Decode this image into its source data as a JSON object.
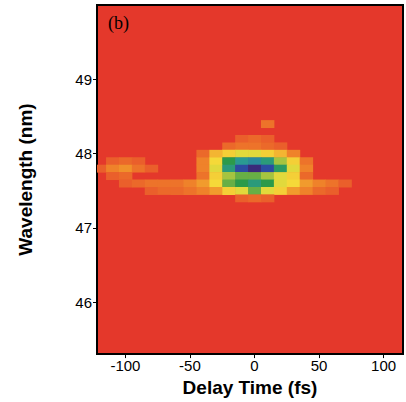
{
  "chart_data": {
    "type": "heatmap",
    "title": "(b)",
    "x_label": "Delay Time (fs)",
    "y_label": "Wavelength (nm)",
    "xlim": [
      -122,
      115
    ],
    "xticks": [
      -100,
      -50,
      0,
      50,
      100
    ],
    "ylim": [
      45.3,
      50.0
    ],
    "yticks": [
      46,
      47,
      48,
      49
    ],
    "zlim": [
      0,
      1
    ],
    "cell_size": [
      10,
      0.1
    ],
    "cells": [
      [
        10,
        48.4,
        0.12
      ],
      [
        -10,
        48.2,
        0.08
      ],
      [
        0,
        48.2,
        0.1
      ],
      [
        10,
        48.2,
        0.08
      ],
      [
        -20,
        48.1,
        0.1
      ],
      [
        -10,
        48.1,
        0.12
      ],
      [
        0,
        48.1,
        0.12
      ],
      [
        10,
        48.1,
        0.1
      ],
      [
        20,
        48.1,
        0.08
      ],
      [
        -40,
        48.0,
        0.1
      ],
      [
        -30,
        48.0,
        0.25
      ],
      [
        -20,
        48.0,
        0.3
      ],
      [
        -10,
        48.0,
        0.35
      ],
      [
        0,
        48.0,
        0.35
      ],
      [
        10,
        48.0,
        0.3
      ],
      [
        20,
        48.0,
        0.25
      ],
      [
        30,
        48.0,
        0.15
      ],
      [
        -110,
        47.9,
        0.08
      ],
      [
        -100,
        47.9,
        0.1
      ],
      [
        -90,
        47.9,
        0.08
      ],
      [
        -40,
        47.9,
        0.15
      ],
      [
        -30,
        47.9,
        0.32
      ],
      [
        -20,
        47.9,
        0.5
      ],
      [
        -10,
        47.9,
        0.65
      ],
      [
        0,
        47.9,
        0.7
      ],
      [
        10,
        47.9,
        0.6
      ],
      [
        20,
        47.9,
        0.4
      ],
      [
        30,
        47.9,
        0.3
      ],
      [
        40,
        47.9,
        0.12
      ],
      [
        -120,
        47.8,
        0.08
      ],
      [
        -110,
        47.8,
        0.15
      ],
      [
        -100,
        47.8,
        0.18
      ],
      [
        -90,
        47.8,
        0.12
      ],
      [
        -80,
        47.8,
        0.08
      ],
      [
        -40,
        47.8,
        0.15
      ],
      [
        -30,
        47.8,
        0.35
      ],
      [
        -20,
        47.8,
        0.6
      ],
      [
        -10,
        47.8,
        0.85
      ],
      [
        0,
        47.8,
        1.0
      ],
      [
        10,
        47.8,
        0.85
      ],
      [
        20,
        47.8,
        0.55
      ],
      [
        30,
        47.8,
        0.35
      ],
      [
        40,
        47.8,
        0.15
      ],
      [
        -110,
        47.7,
        0.08
      ],
      [
        -100,
        47.7,
        0.1
      ],
      [
        -40,
        47.7,
        0.12
      ],
      [
        -30,
        47.7,
        0.3
      ],
      [
        -20,
        47.7,
        0.4
      ],
      [
        -10,
        47.7,
        0.45
      ],
      [
        0,
        47.7,
        0.45
      ],
      [
        10,
        47.7,
        0.4
      ],
      [
        20,
        47.7,
        0.35
      ],
      [
        30,
        47.7,
        0.3
      ],
      [
        40,
        47.7,
        0.1
      ],
      [
        -100,
        47.6,
        0.08
      ],
      [
        -90,
        47.6,
        0.1
      ],
      [
        -80,
        47.6,
        0.12
      ],
      [
        -70,
        47.6,
        0.12
      ],
      [
        -60,
        47.6,
        0.12
      ],
      [
        -50,
        47.6,
        0.15
      ],
      [
        -40,
        47.6,
        0.2
      ],
      [
        -30,
        47.6,
        0.32
      ],
      [
        -20,
        47.6,
        0.45
      ],
      [
        -10,
        47.6,
        0.5
      ],
      [
        0,
        47.6,
        0.6
      ],
      [
        10,
        47.6,
        0.5
      ],
      [
        20,
        47.6,
        0.35
      ],
      [
        30,
        47.6,
        0.32
      ],
      [
        40,
        47.6,
        0.2
      ],
      [
        50,
        47.6,
        0.15
      ],
      [
        60,
        47.6,
        0.12
      ],
      [
        70,
        47.6,
        0.08
      ],
      [
        -80,
        47.5,
        0.08
      ],
      [
        -70,
        47.5,
        0.1
      ],
      [
        -60,
        47.5,
        0.1
      ],
      [
        -50,
        47.5,
        0.12
      ],
      [
        -40,
        47.5,
        0.15
      ],
      [
        -30,
        47.5,
        0.2
      ],
      [
        -20,
        47.5,
        0.3
      ],
      [
        -10,
        47.5,
        0.35
      ],
      [
        0,
        47.5,
        0.45
      ],
      [
        10,
        47.5,
        0.35
      ],
      [
        20,
        47.5,
        0.3
      ],
      [
        30,
        47.5,
        0.2
      ],
      [
        40,
        47.5,
        0.15
      ],
      [
        50,
        47.5,
        0.1
      ],
      [
        60,
        47.5,
        0.08
      ],
      [
        -10,
        47.4,
        0.08
      ],
      [
        0,
        47.4,
        0.1
      ],
      [
        10,
        47.4,
        0.08
      ]
    ]
  }
}
